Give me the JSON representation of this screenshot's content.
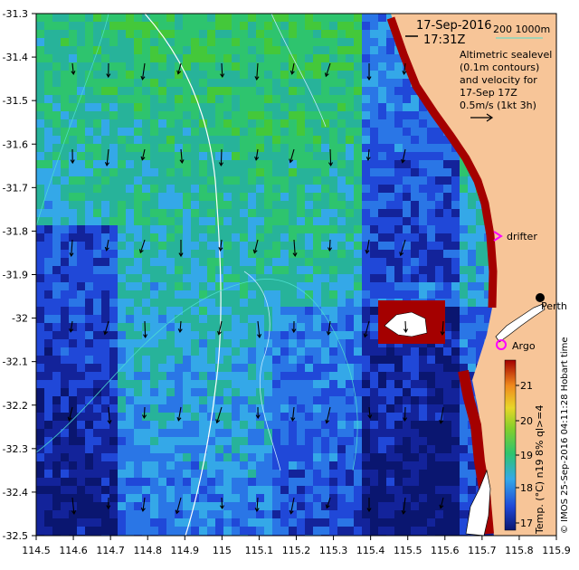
{
  "header": {
    "date": "17-Sep-2016",
    "time": "17:31Z",
    "scale_text": "200  1000m"
  },
  "caption": {
    "line1": "Altimetric sealevel",
    "line2": "(0.1m contours)",
    "line3": "and velocity for",
    "line4": "17-Sep 17Z",
    "line5": "0.5m/s (1kt 3h)"
  },
  "labels": {
    "drifter": "drifter",
    "argo": "Argo",
    "perth": "Perth"
  },
  "credit": "© IMOS 25-Sep-2016 04:11:28 Hobart time",
  "colorbar": {
    "title": "Temp. (°C) n19 8% ql>=4",
    "ticks": [
      "17",
      "18",
      "19",
      "20",
      "21"
    ],
    "colors": [
      "#0a1670",
      "#2048d8",
      "#34a8e8",
      "#2ec46e",
      "#86cf2a",
      "#e8d628",
      "#f08a1e",
      "#a40000"
    ]
  },
  "axes": {
    "x_ticks": [
      "114.5",
      "114.6",
      "114.7",
      "114.8",
      "114.9",
      "115",
      "115.1",
      "115.2",
      "115.3",
      "115.4",
      "115.5",
      "115.6",
      "115.7",
      "115.8",
      "115.9"
    ],
    "y_ticks": [
      "-31.3",
      "-31.4",
      "-31.5",
      "-31.6",
      "-31.7",
      "-31.8",
      "-31.9",
      "-32",
      "-32.1",
      "-32.2",
      "-32.3",
      "-32.4",
      "-32.5"
    ]
  },
  "colors": {
    "land": "#f7c598",
    "drifter_marker": "#ff00ff",
    "argo_marker": "#ff00ff",
    "contour": "#ffffff"
  }
}
